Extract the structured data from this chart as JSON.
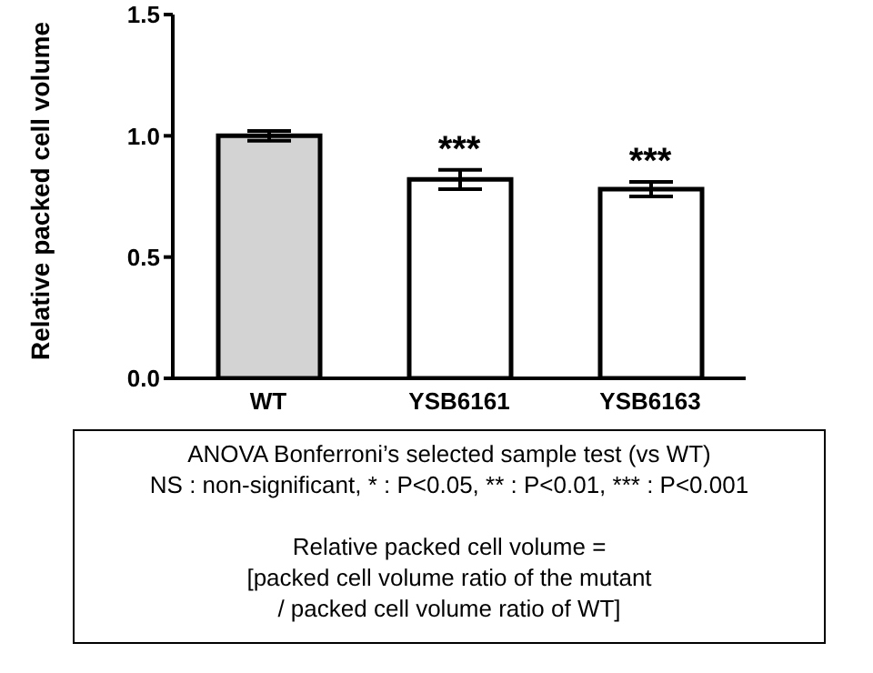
{
  "chart_data": {
    "type": "bar",
    "ylabel": "Relative packed cell volume",
    "categories": [
      "WT",
      "YSB6161",
      "YSB6163"
    ],
    "values": [
      1.0,
      0.82,
      0.78
    ],
    "errors": [
      0.02,
      0.04,
      0.03
    ],
    "colors": [
      "#d3d3d3",
      "#ffffff",
      "#ffffff"
    ],
    "ylim": [
      0,
      1.5
    ],
    "yticks": [
      {
        "value": 0,
        "label": "0.0"
      },
      {
        "value": 0.5,
        "label": "0.5"
      },
      {
        "value": 1,
        "label": "1.0"
      },
      {
        "value": 1.5,
        "label": "1.5"
      }
    ],
    "annotations": [
      {
        "text": "***",
        "x": "YSB6161",
        "y": 0.86
      },
      {
        "text": "***",
        "x": "YSB6163",
        "y": 0.81
      },
      "ANOVA Bonferroni’s selected sample test (vs WT)",
      "NS : non-significant, * : P<0.05, ** : P<0.01, *** : P<0.001",
      "Relative packed cell volume =",
      "[packed cell volume ratio of the mutant",
      "/ packed cell volume ratio of WT]"
    ]
  }
}
